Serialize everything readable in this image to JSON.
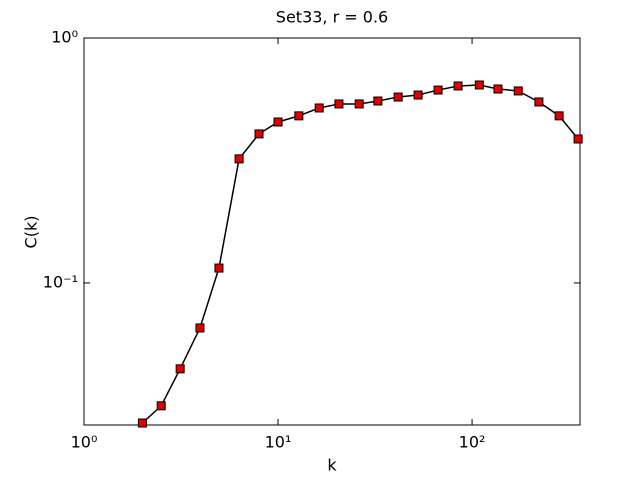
{
  "chart_data": {
    "type": "line",
    "title": "Set33, r = 0.6",
    "xlabel": "k",
    "ylabel": "C(k)",
    "log_x": true,
    "log_y": true,
    "grid": false,
    "x": [
      2,
      2.5,
      3.13,
      3.96,
      4.96,
      6.3,
      7.98,
      10,
      12.8,
      16.3,
      20.6,
      26.2,
      32.7,
      41.6,
      52.7,
      66.8,
      84.7,
      109,
      136,
      173,
      221,
      281,
      352
    ],
    "series": [
      {
        "name": "C(k)",
        "color": "#000000",
        "marker_color": "#e00000",
        "values": [
          0.0268,
          0.0315,
          0.0446,
          0.0655,
          0.115,
          0.321,
          0.406,
          0.454,
          0.481,
          0.518,
          0.538,
          0.538,
          0.553,
          0.574,
          0.585,
          0.613,
          0.637,
          0.643,
          0.619,
          0.608,
          0.548,
          0.481,
          0.387
        ]
      }
    ],
    "xlim": [
      1,
      360
    ],
    "ylim": [
      0.0263,
      1
    ],
    "xticks": [
      {
        "value": 1,
        "label": "10⁰"
      },
      {
        "value": 10,
        "label": "10¹"
      },
      {
        "value": 100,
        "label": "10²"
      }
    ],
    "yticks": [
      {
        "value": 0.1,
        "label": "10⁻¹"
      },
      {
        "value": 1,
        "label": "10⁰"
      }
    ]
  }
}
